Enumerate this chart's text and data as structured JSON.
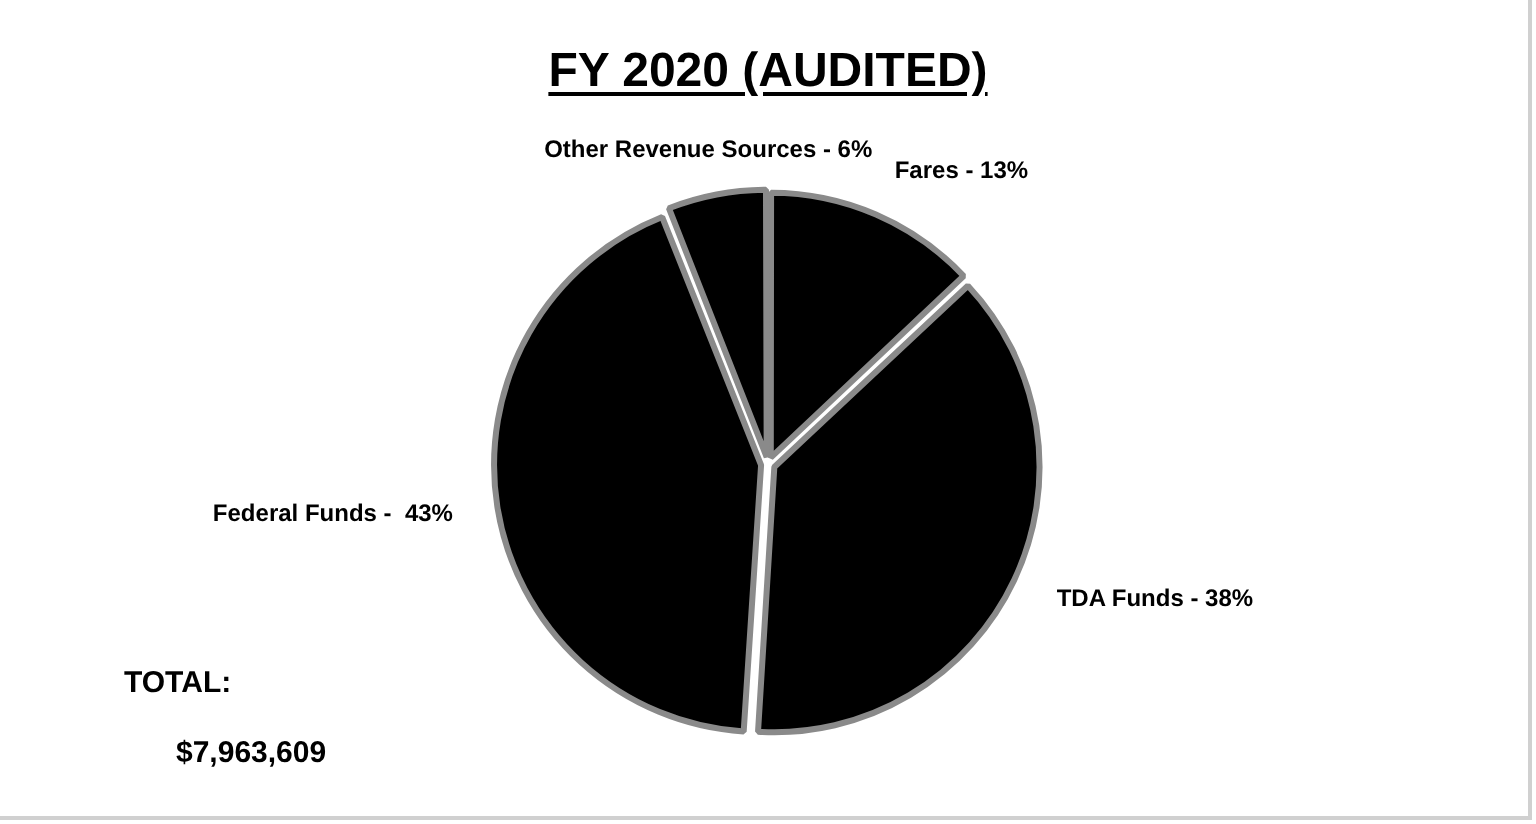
{
  "chart_data": {
    "type": "pie",
    "title": "FY 2020 (AUDITED)",
    "categories": [
      "Fares - 13%",
      "TDA Funds - 38%",
      "Federal Funds -  43%",
      "Other Revenue Sources - 6%"
    ],
    "values": [
      13,
      38,
      43,
      6
    ],
    "colors": [
      "#000000",
      "#000000",
      "#000000",
      "#000000"
    ],
    "legend": false,
    "annotations": [
      "TOTAL:",
      "$7,963,609"
    ]
  }
}
